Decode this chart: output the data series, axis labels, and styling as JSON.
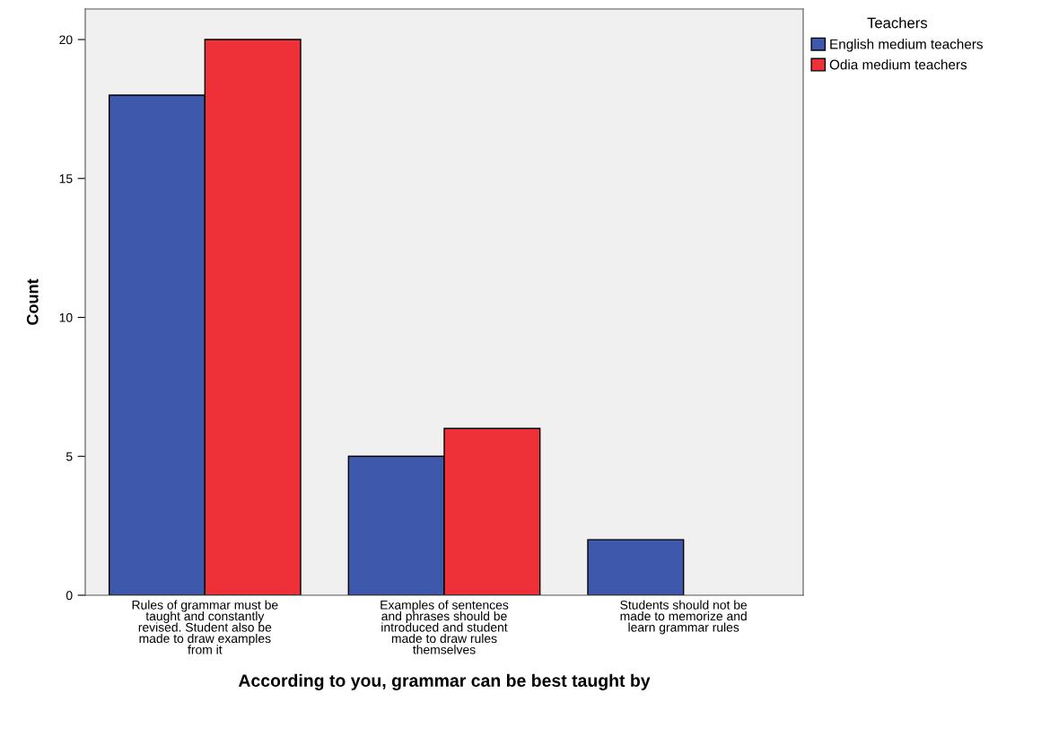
{
  "chart_data": {
    "type": "bar",
    "xlabel": "According to you, grammar can be best taught by",
    "ylabel": "Count",
    "legend_title": "Teachers",
    "categories": [
      "Rules of grammar must be\ntaught and constantly\nrevised. Student also be\nmade to draw examples\nfrom it",
      "Examples of sentences\nand phrases should be\nintroduced and student\nmade to draw rules\nthemselves",
      "Students should not be\nmade to memorize and\nlearn grammar rules"
    ],
    "series": [
      {
        "name": "English medium teachers",
        "color": "#3e58ac",
        "values": [
          18,
          5,
          2
        ]
      },
      {
        "name": "Odia medium teachers",
        "color": "#ee3139",
        "values": [
          20,
          6,
          0
        ]
      }
    ],
    "ylim": [
      0,
      21.1
    ],
    "yticks": [
      0,
      5,
      10,
      15,
      20
    ],
    "grid": false,
    "legend": "top right"
  }
}
